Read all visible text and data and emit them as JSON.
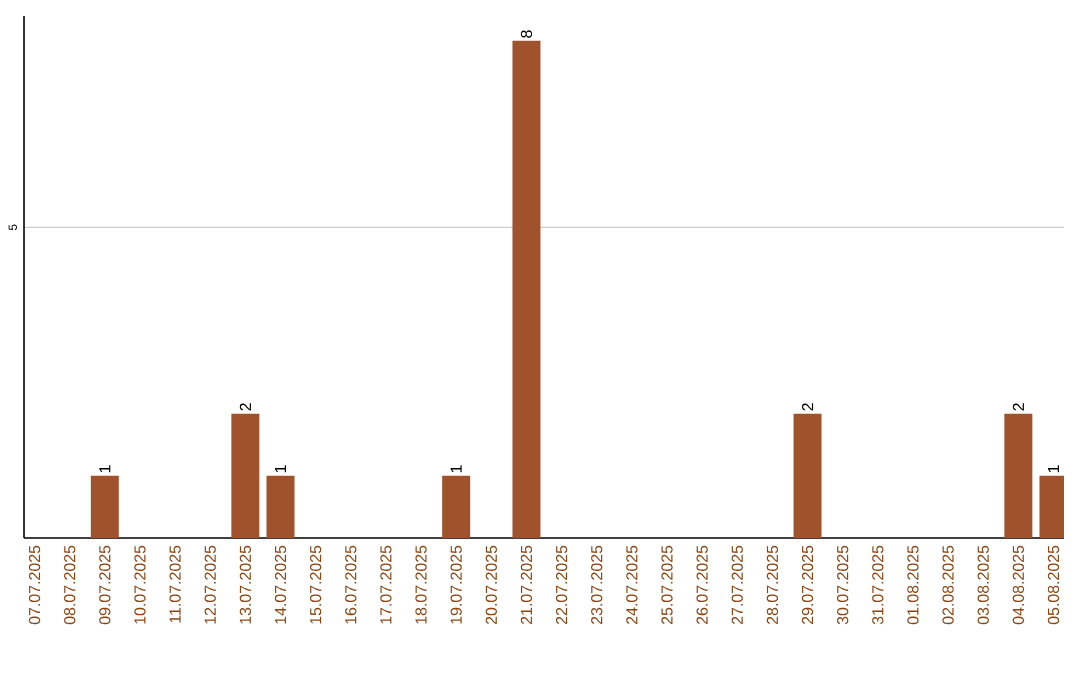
{
  "chart_data": {
    "type": "bar",
    "categories": [
      "07.07.2025",
      "08.07.2025",
      "09.07.2025",
      "10.07.2025",
      "11.07.2025",
      "12.07.2025",
      "13.07.2025",
      "14.07.2025",
      "15.07.2025",
      "16.07.2025",
      "17.07.2025",
      "18.07.2025",
      "19.07.2025",
      "20.07.2025",
      "21.07.2025",
      "22.07.2025",
      "23.07.2025",
      "24.07.2025",
      "25.07.2025",
      "26.07.2025",
      "27.07.2025",
      "28.07.2025",
      "29.07.2025",
      "30.07.2025",
      "31.07.2025",
      "01.08.2025",
      "02.08.2025",
      "03.08.2025",
      "04.08.2025",
      "05.08.2025"
    ],
    "values": [
      0,
      0,
      1,
      0,
      0,
      0,
      2,
      1,
      0,
      0,
      0,
      0,
      1,
      0,
      8,
      0,
      0,
      0,
      0,
      0,
      0,
      0,
      2,
      0,
      0,
      0,
      0,
      0,
      2,
      1
    ],
    "value_labels": [
      null,
      null,
      "1",
      null,
      null,
      null,
      "2",
      "1",
      null,
      null,
      null,
      null,
      "1",
      null,
      "8",
      null,
      null,
      null,
      null,
      null,
      null,
      null,
      "2",
      null,
      null,
      null,
      null,
      null,
      "2",
      "1"
    ],
    "color": "#a0522d",
    "ylim": [
      0,
      8.4
    ],
    "yticks": [
      5
    ],
    "grid": "y"
  }
}
